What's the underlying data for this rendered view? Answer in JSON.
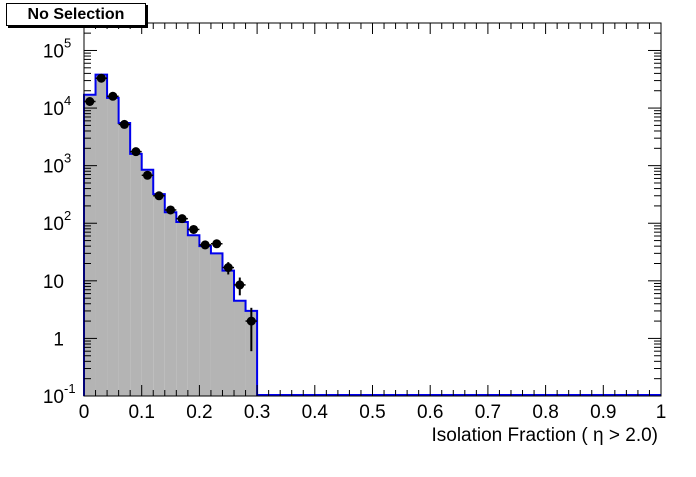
{
  "chart_data": {
    "type": "histogram",
    "title": "No Selection",
    "xlabel": "Isolation Fraction ( η > 2.0)",
    "ylabel": "",
    "xlim": [
      0,
      1
    ],
    "ylim": [
      0.1,
      300000
    ],
    "yscale": "log",
    "x_ticks": [
      "0",
      "0.1",
      "0.2",
      "0.3",
      "0.4",
      "0.5",
      "0.6",
      "0.7",
      "0.8",
      "0.9",
      "1"
    ],
    "x_tick_values": [
      0,
      0.1,
      0.2,
      0.3,
      0.4,
      0.5,
      0.6,
      0.7,
      0.8,
      0.9,
      1.0
    ],
    "y_ticks": [
      {
        "value": 0.1,
        "base": "10",
        "exp": "-1"
      },
      {
        "value": 1,
        "base": "1",
        "exp": ""
      },
      {
        "value": 10,
        "base": "10",
        "exp": ""
      },
      {
        "value": 100,
        "base": "10",
        "exp": "2"
      },
      {
        "value": 1000,
        "base": "10",
        "exp": "3"
      },
      {
        "value": 10000,
        "base": "10",
        "exp": "4"
      },
      {
        "value": 100000,
        "base": "10",
        "exp": "5"
      }
    ],
    "bin_width": 0.02,
    "bin_lows": [
      0,
      0.02,
      0.04,
      0.06,
      0.08,
      0.1,
      0.12,
      0.14,
      0.16,
      0.18,
      0.2,
      0.22,
      0.24,
      0.26,
      0.28
    ],
    "histogram_values": [
      17000,
      38000,
      15000,
      5500,
      1600,
      850,
      320,
      155,
      105,
      62,
      40,
      30,
      15,
      4.5,
      3
    ],
    "points": {
      "x": [
        0.01,
        0.03,
        0.05,
        0.07,
        0.09,
        0.11,
        0.13,
        0.15,
        0.17,
        0.19,
        0.21,
        0.23,
        0.25,
        0.27,
        0.29
      ],
      "y": [
        13000,
        33000,
        16000,
        5200,
        1750,
        680,
        300,
        170,
        120,
        78,
        42,
        44,
        17,
        8.5,
        2
      ],
      "yerr": [
        110,
        180,
        125,
        72,
        42,
        26,
        17,
        13,
        11,
        9,
        6.5,
        6.6,
        4.1,
        2.9,
        1.4
      ]
    },
    "colors": {
      "fill": "#b4b4b4",
      "line": "#0000ee",
      "marker": "#000000"
    },
    "grid": false,
    "legend": "none"
  }
}
